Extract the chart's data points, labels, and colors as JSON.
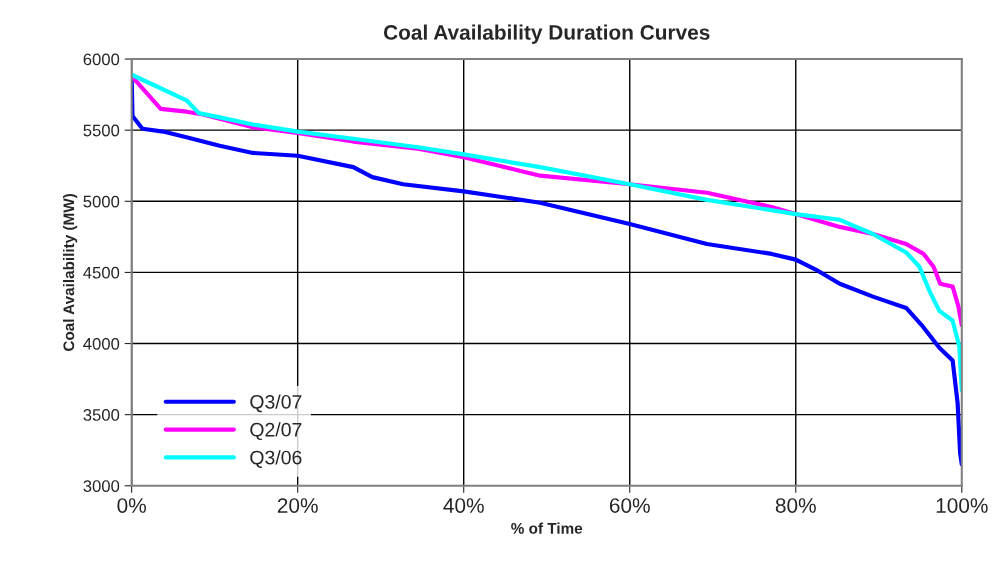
{
  "chart_data": {
    "type": "line",
    "title": "Coal Availability Duration Curves",
    "xlabel": "% of Time",
    "ylabel": "Coal Availability (MW)",
    "xlim": [
      0,
      100
    ],
    "xticks": [
      {
        "value": 0,
        "label": "0%"
      },
      {
        "value": 20,
        "label": "20%"
      },
      {
        "value": 40,
        "label": "40%"
      },
      {
        "value": 60,
        "label": "60%"
      },
      {
        "value": 80,
        "label": "80%"
      },
      {
        "value": 100,
        "label": "100%"
      }
    ],
    "ylim": [
      3000,
      6000
    ],
    "yticks": [
      3000,
      3500,
      4000,
      4500,
      5000,
      5500,
      6000
    ],
    "grid": true,
    "legend": "bottom left",
    "marker": "none",
    "line_style": "solid",
    "series": [
      {
        "name": "Q3/07",
        "color": "#0000ff",
        "x": [
          0,
          0.1,
          1.3,
          3.8,
          6.6,
          10.6,
          14.6,
          20,
          26.7,
          29,
          32.7,
          40,
          49.2,
          60,
          69.3,
          77.1,
          80,
          82.4,
          85.3,
          89.3,
          93.3,
          95.3,
          97.3,
          98.9,
          99.5,
          99.8,
          100
        ],
        "values": [
          5880,
          5600,
          5510,
          5490,
          5450,
          5390,
          5340,
          5320,
          5240,
          5170,
          5120,
          5070,
          4990,
          4840,
          4700,
          4630,
          4590,
          4520,
          4420,
          4330,
          4250,
          4120,
          3970,
          3880,
          3580,
          3230,
          3150
        ]
      },
      {
        "name": "Q2/07",
        "color": "#ff00ff",
        "x": [
          0,
          3.5,
          6.6,
          8.6,
          10.6,
          14.6,
          20,
          26.7,
          34.5,
          40,
          49.2,
          60,
          69.3,
          77.1,
          81.2,
          85.3,
          89.3,
          93.3,
          95.4,
          96.6,
          97.4,
          98.9,
          99.6,
          100
        ],
        "values": [
          5880,
          5650,
          5630,
          5610,
          5580,
          5520,
          5480,
          5420,
          5370,
          5310,
          5180,
          5120,
          5060,
          4960,
          4890,
          4820,
          4770,
          4700,
          4630,
          4540,
          4420,
          4400,
          4260,
          4130
        ]
      },
      {
        "name": "Q3/06",
        "color": "#00ffff",
        "x": [
          0,
          2.2,
          6.6,
          8.1,
          10.6,
          14.6,
          20,
          26.7,
          34.5,
          40,
          49.2,
          60,
          69.3,
          80,
          85.3,
          89.3,
          93.3,
          94.9,
          96.1,
          97.3,
          98.9,
          99.7,
          100
        ],
        "values": [
          5890,
          5830,
          5710,
          5620,
          5590,
          5540,
          5490,
          5440,
          5380,
          5330,
          5240,
          5120,
          5010,
          4910,
          4870,
          4770,
          4640,
          4540,
          4370,
          4230,
          4160,
          3980,
          3670
        ]
      }
    ]
  }
}
